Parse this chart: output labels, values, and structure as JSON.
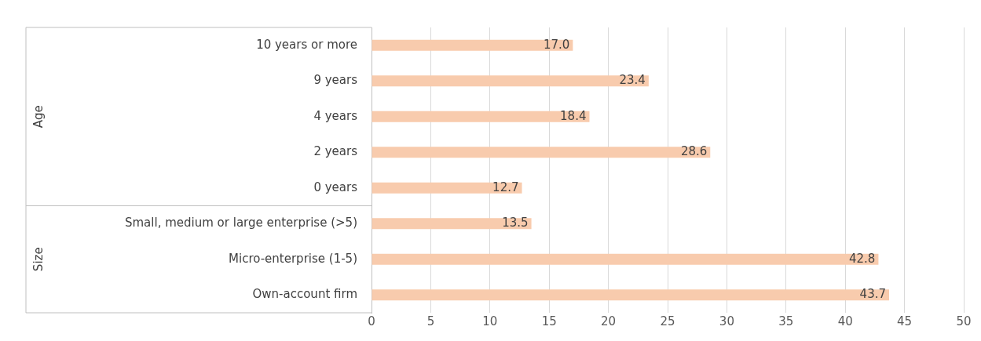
{
  "chart_data": {
    "type": "bar",
    "orientation": "horizontal",
    "categories": [
      "10 years or more",
      "9 years",
      "4 years",
      "2 years",
      "0 years",
      "Small, medium or large enterprise (>5)",
      "Micro-enterprise (1-5)",
      "Own-account firm"
    ],
    "values": [
      17.0,
      23.4,
      18.4,
      28.6,
      12.7,
      13.5,
      42.8,
      43.7
    ],
    "value_labels": [
      "17.0",
      "23.4",
      "18.4",
      "28.6",
      "12.7",
      "13.5",
      "42.8",
      "43.7"
    ],
    "color": "#f8cbad",
    "xlim": [
      0,
      50
    ],
    "xticks": [
      0,
      5,
      10,
      15,
      20,
      25,
      30,
      35,
      40,
      45,
      50
    ],
    "grid": "x",
    "legend": false,
    "annotations": [
      "Age",
      "Size"
    ]
  }
}
